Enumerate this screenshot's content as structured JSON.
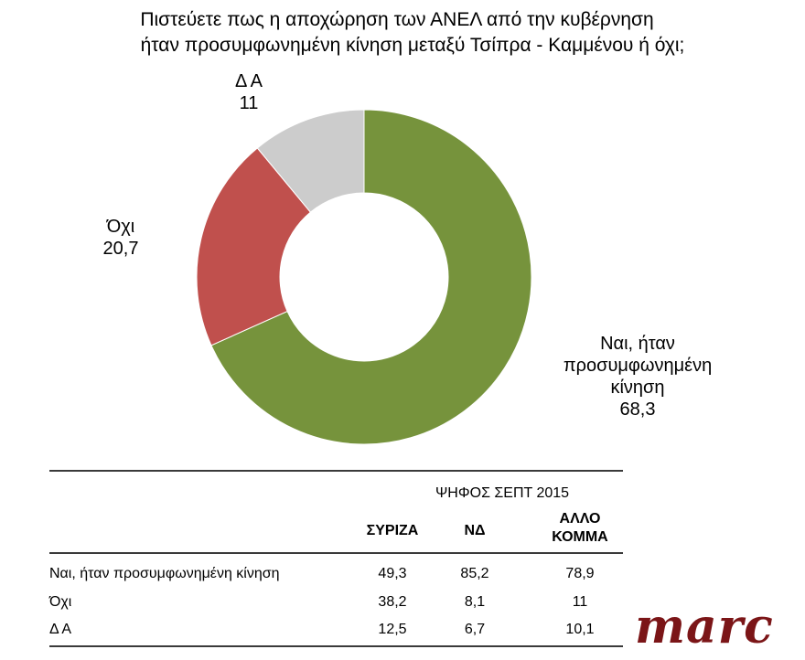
{
  "chart_data": {
    "type": "pie",
    "subtype": "donut",
    "title": "Πιστεύετε πως η αποχώρηση των ΑΝΕΛ από την κυβέρνηση ήταν προσυμφωνημένη κίνηση μεταξύ Τσίπρα - Καμμένου ή όχι;",
    "categories": [
      "Ναι, ήταν προσυμφωνημένη κίνηση",
      "Όχι",
      "Δ Α"
    ],
    "values": [
      68.3,
      20.7,
      11
    ],
    "colors": [
      "#76933c",
      "#c0504d",
      "#cccccc"
    ],
    "value_labels": [
      "68,3",
      "20,7",
      "11"
    ],
    "start_angle_deg": 0,
    "direction": "clockwise",
    "legend": "none (data labels outside slices)",
    "table": {
      "type": "table",
      "group_header": "ΨΗΦΟΣ ΣΕΠΤ 2015",
      "columns": [
        "ΣΥΡΙΖΑ",
        "ΝΔ",
        "ΑΛΛΟ ΚΟΜΜΑ"
      ],
      "rows": [
        {
          "label": "Ναι, ήταν προσυμφωνημένη κίνηση",
          "values": [
            49.3,
            85.2,
            78.9
          ]
        },
        {
          "label": "Όχι",
          "values": [
            38.2,
            8.1,
            11
          ]
        },
        {
          "label": "Δ Α",
          "values": [
            12.5,
            6.7,
            10.1
          ]
        }
      ]
    }
  },
  "title": {
    "line1": "Πιστεύετε πως η αποχώρηση των ΑΝΕΛ από την κυβέρνηση",
    "line2": "ήταν προσυμφωνημένη κίνηση μεταξύ Τσίπρα - Καμμένου ή όχι;"
  },
  "labels": {
    "da": {
      "name": "Δ Α",
      "value": "11"
    },
    "oxi": {
      "name": "Όχι",
      "value": "20,7"
    },
    "yes": {
      "line1": "Ναι, ήταν",
      "line2": "προσυμφωνημένη",
      "line3": "κίνηση",
      "value": "68,3"
    }
  },
  "table": {
    "group_header": "ΨΗΦΟΣ ΣΕΠΤ 2015",
    "col1": "ΣΥΡΙΖΑ",
    "col2": "ΝΔ",
    "col3_line1": "ΑΛΛΟ",
    "col3_line2": "ΚΟΜΜΑ",
    "rows": [
      {
        "label": "Ναι, ήταν προσυμφωνημένη κίνηση",
        "v1": "49,3",
        "v2": "85,2",
        "v3": "78,9"
      },
      {
        "label": "Όχι",
        "v1": "38,2",
        "v2": "8,1",
        "v3": "11"
      },
      {
        "label": "Δ Α",
        "v1": "12,5",
        "v2": "6,7",
        "v3": "10,1"
      }
    ]
  },
  "logo": {
    "text": "marc"
  }
}
